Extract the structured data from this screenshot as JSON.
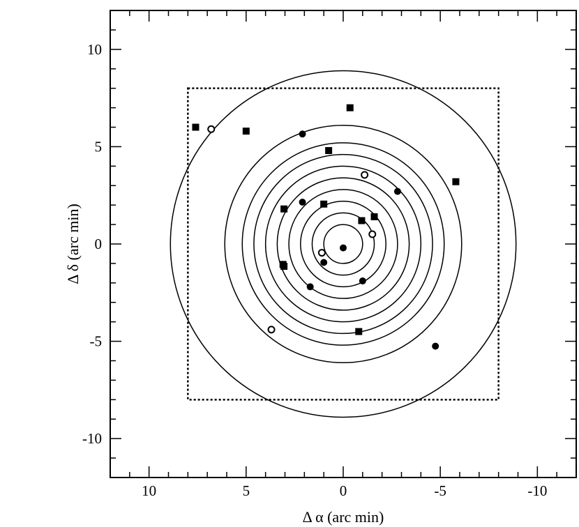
{
  "chart_data": {
    "type": "scatter",
    "title": "",
    "xlabel": "Δ α  (arc min)",
    "ylabel": "Δ δ  (arc min)",
    "xlim": [
      12,
      -12
    ],
    "ylim": [
      -12,
      12
    ],
    "x_reversed": true,
    "xticks": [
      10,
      5,
      0,
      -5,
      -10
    ],
    "yticks": [
      10,
      5,
      0,
      -5,
      -10
    ],
    "xtick_labels": [
      "10",
      "5",
      "0",
      "-5",
      "-10"
    ],
    "ytick_labels": [
      "10",
      "5",
      "0",
      "-5",
      "-10"
    ],
    "grid": false,
    "legend": "none",
    "field_box": {
      "x": [
        -8,
        8
      ],
      "y": [
        -8,
        8
      ],
      "style": "dotted"
    },
    "rings": {
      "center": [
        0,
        0
      ],
      "radii": [
        1.0,
        1.6,
        2.2,
        2.8,
        3.4,
        4.0,
        4.6,
        5.2,
        6.1,
        8.9
      ]
    },
    "series": [
      {
        "marker": "filled-circle",
        "points": [
          [
            0.0,
            -0.2
          ],
          [
            2.1,
            5.65
          ],
          [
            2.1,
            2.15
          ],
          [
            1.0,
            -0.95
          ],
          [
            1.7,
            -2.2
          ],
          [
            -1.0,
            -1.9
          ],
          [
            -2.8,
            2.7
          ],
          [
            -4.75,
            -5.25
          ]
        ]
      },
      {
        "marker": "open-circle",
        "points": [
          [
            6.8,
            5.9
          ],
          [
            -1.1,
            3.55
          ],
          [
            1.1,
            -0.45
          ],
          [
            -1.5,
            0.5
          ],
          [
            3.7,
            -4.4
          ]
        ]
      },
      {
        "marker": "filled-square",
        "points": [
          [
            7.6,
            6.0
          ],
          [
            5.0,
            5.8
          ],
          [
            -0.35,
            7.0
          ],
          [
            0.75,
            4.8
          ],
          [
            -5.8,
            3.2
          ],
          [
            3.05,
            1.8
          ],
          [
            1.0,
            2.05
          ],
          [
            -1.6,
            1.4
          ],
          [
            -0.95,
            1.2
          ],
          [
            3.1,
            -1.05
          ],
          [
            3.05,
            -1.15
          ],
          [
            -0.8,
            -4.5
          ]
        ]
      }
    ]
  }
}
